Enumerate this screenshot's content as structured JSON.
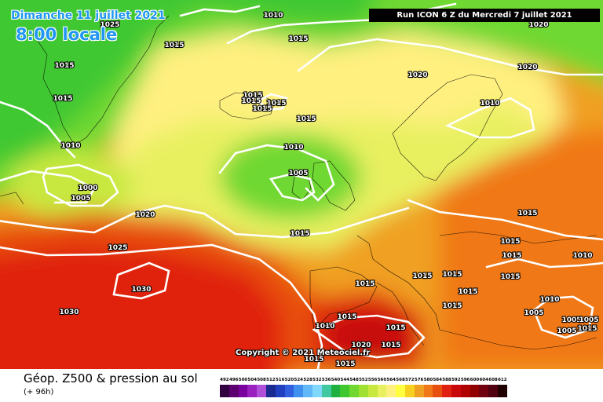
{
  "header": {
    "date": "Dimanche 11 juillet 2021",
    "time": "8:00 locale",
    "run": "Run ICON 6 Z du Mercredi 7 juillet 2021"
  },
  "footer": {
    "copyright": "Copyright © 2021 Meteociel.fr",
    "title": "Géop. Z500 & pression au sol",
    "lead": "(+ 96h)"
  },
  "legend": {
    "values": [
      "492",
      "496",
      "500",
      "504",
      "508",
      "512",
      "516",
      "520",
      "524",
      "528",
      "532",
      "536",
      "540",
      "544",
      "548",
      "552",
      "556",
      "560",
      "564",
      "568",
      "572",
      "576",
      "580",
      "584",
      "588",
      "592",
      "596",
      "600",
      "604",
      "608",
      "612"
    ],
    "colors": [
      "#300040",
      "#5c0070",
      "#7a00a0",
      "#9a20c0",
      "#b050d8",
      "#1a2a90",
      "#2040c0",
      "#3060e0",
      "#4090f0",
      "#60b8f8",
      "#80d8ff",
      "#40c8a0",
      "#20b040",
      "#40c830",
      "#70d830",
      "#a0e030",
      "#c8e840",
      "#e8f060",
      "#fff080",
      "#ffff40",
      "#f8d020",
      "#f0a020",
      "#f07818",
      "#e85010",
      "#e02010",
      "#c80808",
      "#b00000",
      "#900000",
      "#700010",
      "#500010",
      "#200000"
    ]
  },
  "isobar_labels": [
    {
      "text": "1010"
    },
    {
      "text": "1025"
    },
    {
      "text": "1015"
    },
    {
      "text": "1015"
    },
    {
      "text": "1015"
    },
    {
      "text": "1015"
    },
    {
      "text": "1020"
    },
    {
      "text": "1015"
    },
    {
      "text": "1015"
    },
    {
      "text": "1015"
    },
    {
      "text": "1015"
    },
    {
      "text": "1015"
    },
    {
      "text": "1020"
    },
    {
      "text": "1010"
    },
    {
      "text": "1010"
    },
    {
      "text": "1010"
    },
    {
      "text": "1005"
    },
    {
      "text": "1000"
    },
    {
      "text": "1005"
    },
    {
      "text": "1020"
    },
    {
      "text": "1025"
    },
    {
      "text": "1015"
    },
    {
      "text": "1030"
    },
    {
      "text": "1030"
    },
    {
      "text": "1015"
    },
    {
      "text": "1015"
    },
    {
      "text": "1015"
    },
    {
      "text": "1015"
    },
    {
      "text": "1015"
    },
    {
      "text": "1015"
    },
    {
      "text": "1015"
    },
    {
      "text": "1015"
    },
    {
      "text": "1015"
    },
    {
      "text": "1015"
    },
    {
      "text": "1015"
    },
    {
      "text": "1010"
    },
    {
      "text": "1015"
    },
    {
      "text": "1020"
    },
    {
      "text": "1015"
    },
    {
      "text": "1015"
    },
    {
      "text": "1010"
    },
    {
      "text": "1005"
    },
    {
      "text": "1005"
    },
    {
      "text": "1005"
    },
    {
      "text": "1005"
    },
    {
      "text": "1015"
    },
    {
      "text": "1010"
    },
    {
      "text": "1020"
    }
  ]
}
